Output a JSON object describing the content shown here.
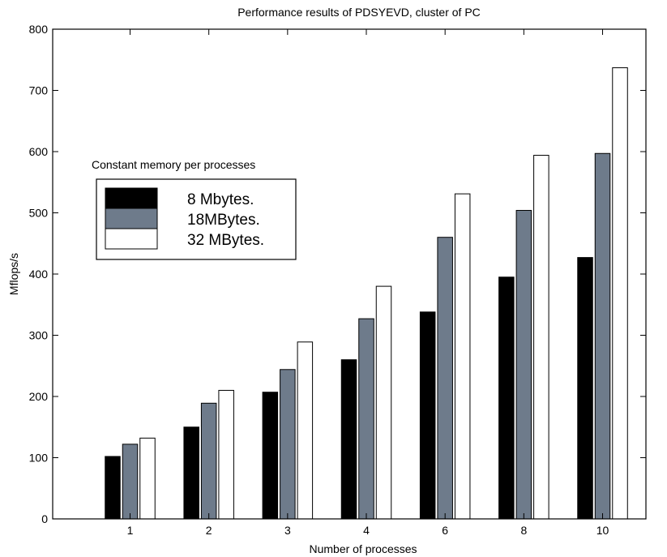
{
  "chart_data": {
    "type": "bar",
    "title": "Performance results of PDSYEVD, cluster of PC",
    "xlabel": "Number of processes",
    "ylabel": "Mflops/s",
    "categories": [
      "1",
      "2",
      "3",
      "4",
      "6",
      "8",
      "10"
    ],
    "ylim": [
      0,
      800
    ],
    "yticks": [
      0,
      100,
      200,
      300,
      400,
      500,
      600,
      700,
      800
    ],
    "grid": false,
    "legend": {
      "title": "Constant memory per processes",
      "placement": "upper-left"
    },
    "series": [
      {
        "name": "8 Mbytes.",
        "color": "#000000",
        "values": [
          102,
          150,
          207,
          260,
          338,
          395,
          427
        ]
      },
      {
        "name": "18MBytes.",
        "color": "#6e7b8b",
        "values": [
          122,
          189,
          244,
          327,
          460,
          504,
          597
        ]
      },
      {
        "name": "32 MBytes.",
        "color": "#ffffff",
        "values": [
          132,
          210,
          289,
          380,
          531,
          594,
          737
        ]
      }
    ]
  }
}
